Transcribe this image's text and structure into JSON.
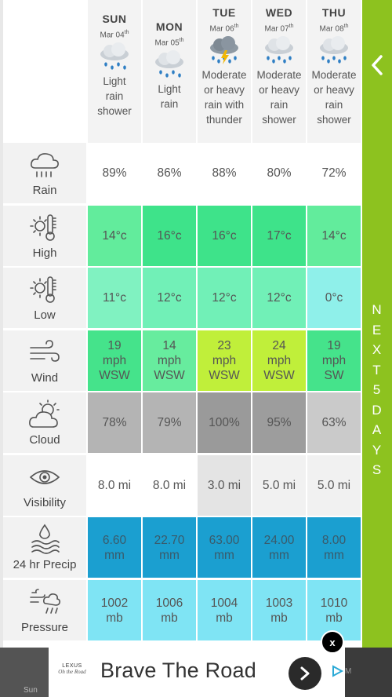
{
  "days": [
    {
      "name": "SUN",
      "date": "Mar 04",
      "suffix": "th",
      "desc": [
        "Light",
        "rain",
        "shower"
      ],
      "icon": "light-rain-cloud-icon"
    },
    {
      "name": "MON",
      "date": "Mar 05",
      "suffix": "th",
      "desc": [
        "Light",
        "rain"
      ],
      "icon": "light-rain-cloud-icon"
    },
    {
      "name": "TUE",
      "date": "Mar 06",
      "suffix": "th",
      "desc": [
        "Moderate",
        "or heavy",
        "rain with",
        "thunder"
      ],
      "icon": "thunder-rain-cloud-icon"
    },
    {
      "name": "WED",
      "date": "Mar 07",
      "suffix": "th",
      "desc": [
        "Moderate",
        "or heavy",
        "rain",
        "shower"
      ],
      "icon": "heavy-rain-cloud-icon"
    },
    {
      "name": "THU",
      "date": "Mar 08",
      "suffix": "th",
      "desc": [
        "Moderate",
        "or heavy",
        "rain",
        "shower"
      ],
      "icon": "heavy-rain-cloud-icon"
    }
  ],
  "rows": [
    {
      "label": "Rain",
      "icon": "rain-cloud-icon",
      "values": [
        [
          "89%"
        ],
        [
          "86%"
        ],
        [
          "88%"
        ],
        [
          "80%"
        ],
        [
          "72%"
        ]
      ],
      "colors": [
        "#ffffff",
        "#ffffff",
        "#ffffff",
        "#ffffff",
        "#ffffff"
      ]
    },
    {
      "label": "High",
      "icon": "sun-thermometer-icon",
      "values": [
        [
          "14°c"
        ],
        [
          "16°c"
        ],
        [
          "16°c"
        ],
        [
          "17°c"
        ],
        [
          "14°c"
        ]
      ],
      "colors": [
        "#62ec9c",
        "#3ee38a",
        "#3ee38a",
        "#3ee38a",
        "#62ec9c"
      ]
    },
    {
      "label": "Low",
      "icon": "sun-thermometer-icon",
      "values": [
        [
          "11°c"
        ],
        [
          "12°c"
        ],
        [
          "12°c"
        ],
        [
          "12°c"
        ],
        [
          "0°c"
        ]
      ],
      "colors": [
        "#80f2c1",
        "#71f0b7",
        "#71f0b7",
        "#71f0b7",
        "#8ff0ea"
      ]
    },
    {
      "label": "Wind",
      "icon": "wind-icon",
      "values": [
        [
          "19",
          "mph",
          "WSW"
        ],
        [
          "14",
          "mph",
          "WSW"
        ],
        [
          "23",
          "mph",
          "WSW"
        ],
        [
          "24",
          "mph",
          "WSW"
        ],
        [
          "19",
          "mph",
          "SW"
        ]
      ],
      "colors": [
        "#45e38b",
        "#67ec9e",
        "#c0ef3a",
        "#c0ef3a",
        "#45e38b"
      ]
    },
    {
      "label": "Cloud",
      "icon": "sun-cloud-icon",
      "values": [
        [
          "78%"
        ],
        [
          "79%"
        ],
        [
          "100%"
        ],
        [
          "95%"
        ],
        [
          "63%"
        ]
      ],
      "colors": [
        "#b4b4b4",
        "#b4b4b4",
        "#9a9a9a",
        "#9d9d9d",
        "#cacaca"
      ]
    },
    {
      "label": "Visibility",
      "icon": "eye-icon",
      "values": [
        [
          "8.0 mi"
        ],
        [
          "8.0 mi"
        ],
        [
          "3.0 mi"
        ],
        [
          "5.0 mi"
        ],
        [
          "5.0 mi"
        ]
      ],
      "colors": [
        "#ffffff",
        "#ffffff",
        "#e4e4e4",
        "#f1f1f1",
        "#f1f1f1"
      ]
    },
    {
      "label": "24 hr Precip",
      "icon": "precip-waves-icon",
      "values": [
        [
          "6.60",
          "mm"
        ],
        [
          "22.70",
          "mm"
        ],
        [
          "63.00",
          "mm"
        ],
        [
          "24.00",
          "mm"
        ],
        [
          "8.00",
          "mm"
        ]
      ],
      "colors": [
        "#1b9fd0",
        "#1b9fd0",
        "#1b9fd0",
        "#1b9fd0",
        "#1b9fd0"
      ],
      "textColor": "#3a5a6a"
    },
    {
      "label": "Pressure",
      "icon": "pressure-icon",
      "values": [
        [
          "1002",
          "mb"
        ],
        [
          "1006",
          "mb"
        ],
        [
          "1004",
          "mb"
        ],
        [
          "1003",
          "mb"
        ],
        [
          "1010",
          "mb"
        ]
      ],
      "colors": [
        "#7fe4f4",
        "#7fe4f4",
        "#7fe4f4",
        "#7fe4f4",
        "#7fe4f4"
      ]
    }
  ],
  "sidebar": {
    "vertical_text": "NEXT5DAYS",
    "accent": "#8dc21f"
  },
  "ad": {
    "brand_line1": "LEXUS",
    "brand_line2": "Oh the Road",
    "headline": "Brave The Road",
    "close_label": "x",
    "partial_label": "Sun",
    "right_edge_label": "M"
  }
}
